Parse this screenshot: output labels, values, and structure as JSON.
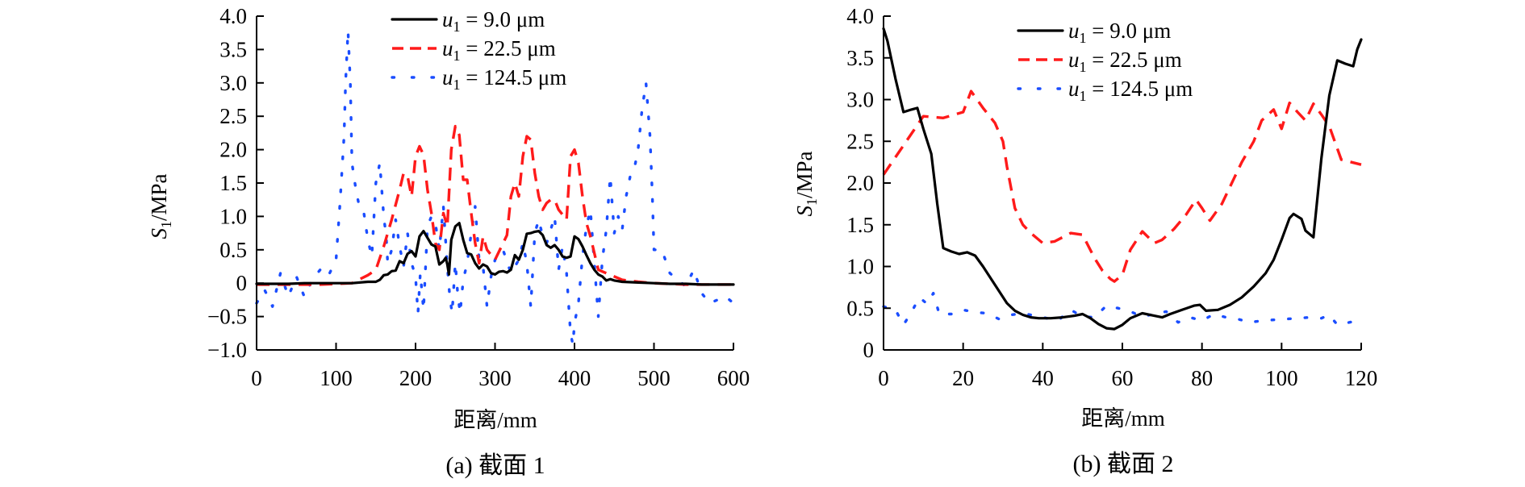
{
  "chart_data": [
    {
      "id": "a",
      "type": "line",
      "caption": "(a) 截面 1",
      "xlabel": "距离/mm",
      "ylabel_main": "S",
      "ylabel_sub": "1",
      "ylabel_unit": "/MPa",
      "xlim": [
        0,
        600
      ],
      "ylim": [
        -1.0,
        4.0
      ],
      "xticks": [
        0,
        100,
        200,
        300,
        400,
        500,
        600
      ],
      "xtick_labels": [
        "0",
        "100",
        "200",
        "300",
        "400",
        "500",
        "600"
      ],
      "yticks": [
        -1.0,
        -0.5,
        0,
        0.5,
        1.0,
        1.5,
        2.0,
        2.5,
        3.0,
        3.5,
        4.0
      ],
      "ytick_labels": [
        "−1.0",
        "−0.5",
        "0",
        "0.5",
        "1.0",
        "1.5",
        "2.0",
        "2.5",
        "3.0",
        "3.5",
        "4.0"
      ],
      "grid": false,
      "legend_position": "top-center",
      "series": [
        {
          "name": "u1 = 9.0 μm",
          "legend_var": "u",
          "legend_sub": "1",
          "legend_rest": " = 9.0 μm",
          "color": "#000000",
          "style": "solid",
          "x": [
            0,
            20,
            40,
            60,
            80,
            100,
            120,
            140,
            150,
            155,
            160,
            165,
            170,
            175,
            180,
            185,
            190,
            195,
            200,
            205,
            210,
            215,
            220,
            225,
            230,
            235,
            238,
            240,
            242,
            245,
            250,
            255,
            260,
            265,
            270,
            275,
            280,
            285,
            290,
            295,
            300,
            305,
            310,
            315,
            320,
            325,
            330,
            335,
            340,
            345,
            350,
            355,
            360,
            365,
            370,
            375,
            380,
            385,
            390,
            395,
            400,
            405,
            410,
            415,
            420,
            425,
            430,
            435,
            440,
            445,
            450,
            460,
            480,
            500,
            520,
            540,
            560,
            580,
            600
          ],
          "y": [
            -0.01,
            -0.01,
            -0.01,
            0.0,
            0.0,
            0.0,
            0.0,
            0.02,
            0.02,
            0.05,
            0.12,
            0.13,
            0.18,
            0.19,
            0.33,
            0.3,
            0.44,
            0.48,
            0.4,
            0.7,
            0.78,
            0.68,
            0.58,
            0.55,
            0.28,
            0.33,
            0.38,
            0.28,
            0.13,
            0.65,
            0.85,
            0.9,
            0.65,
            0.45,
            0.43,
            0.3,
            0.22,
            0.28,
            0.25,
            0.15,
            0.13,
            0.17,
            0.18,
            0.16,
            0.2,
            0.42,
            0.35,
            0.5,
            0.74,
            0.75,
            0.77,
            0.78,
            0.72,
            0.57,
            0.53,
            0.57,
            0.5,
            0.4,
            0.38,
            0.4,
            0.7,
            0.66,
            0.55,
            0.42,
            0.3,
            0.2,
            0.13,
            0.1,
            0.04,
            0.06,
            0.04,
            0.02,
            0.01,
            0.0,
            -0.01,
            -0.01,
            -0.02,
            -0.02,
            -0.02
          ]
        },
        {
          "name": "u1 = 22.5 μm",
          "legend_var": "u",
          "legend_sub": "1",
          "legend_rest": " = 22.5 μm",
          "color": "#ff1a1a",
          "style": "dashed",
          "x": [
            0,
            40,
            80,
            120,
            140,
            150,
            160,
            170,
            180,
            185,
            190,
            195,
            200,
            205,
            210,
            215,
            220,
            225,
            230,
            235,
            240,
            245,
            250,
            255,
            260,
            265,
            270,
            275,
            280,
            285,
            290,
            300,
            315,
            320,
            325,
            330,
            335,
            340,
            345,
            350,
            355,
            360,
            365,
            370,
            375,
            380,
            390,
            395,
            400,
            405,
            410,
            415,
            420,
            425,
            430,
            440,
            450,
            460,
            480,
            500,
            520,
            540,
            560,
            580,
            600
          ],
          "y": [
            -0.02,
            -0.02,
            -0.02,
            0.0,
            0.12,
            0.2,
            0.55,
            0.95,
            1.4,
            1.65,
            1.6,
            1.3,
            1.9,
            2.05,
            1.92,
            1.4,
            1.05,
            0.6,
            0.5,
            1.05,
            0.85,
            2.0,
            2.35,
            2.22,
            1.55,
            1.55,
            1.05,
            0.6,
            0.3,
            0.7,
            0.5,
            0.35,
            0.72,
            1.3,
            1.5,
            1.3,
            1.9,
            2.2,
            2.15,
            1.65,
            1.3,
            1.1,
            1.2,
            1.25,
            1.25,
            1.1,
            0.95,
            1.9,
            2.0,
            1.8,
            1.3,
            0.9,
            0.7,
            0.45,
            0.2,
            0.15,
            0.1,
            0.05,
            0.02,
            0.0,
            -0.01,
            -0.02,
            -0.02,
            -0.02,
            -0.02
          ]
        },
        {
          "name": "u1 = 124.5 μm",
          "legend_var": "u",
          "legend_sub": "1",
          "legend_rest": " = 124.5 μm",
          "color": "#1a4dff",
          "style": "dotted",
          "x": [
            0,
            10,
            20,
            30,
            40,
            50,
            60,
            70,
            80,
            90,
            100,
            105,
            110,
            112,
            115,
            118,
            120,
            125,
            130,
            135,
            140,
            145,
            150,
            155,
            160,
            163,
            165,
            170,
            175,
            180,
            185,
            190,
            195,
            200,
            203,
            206,
            210,
            215,
            220,
            225,
            230,
            235,
            240,
            243,
            246,
            250,
            253,
            256,
            260,
            265,
            270,
            275,
            280,
            285,
            290,
            295,
            300,
            310,
            320,
            330,
            335,
            340,
            345,
            350,
            355,
            360,
            365,
            370,
            375,
            380,
            385,
            390,
            395,
            398,
            400,
            405,
            410,
            415,
            420,
            425,
            430,
            435,
            440,
            445,
            450,
            455,
            460,
            465,
            470,
            475,
            480,
            485,
            490,
            495,
            498,
            500,
            505,
            510,
            520,
            530,
            540,
            550,
            560,
            570,
            580,
            590,
            600
          ],
          "y": [
            -0.3,
            -0.1,
            -0.35,
            0.15,
            -0.2,
            0.1,
            -0.2,
            0.05,
            0.2,
            0.1,
            0.35,
            1.2,
            2.2,
            3.0,
            3.78,
            3.0,
            1.8,
            1.4,
            1.1,
            1.05,
            0.65,
            0.4,
            1.5,
            1.8,
            1.0,
            0.7,
            0.3,
            0.5,
            0.95,
            0.55,
            0.25,
            0.75,
            0.3,
            0.1,
            -0.45,
            0.15,
            -0.4,
            0.85,
            1.0,
            0.9,
            0.5,
            1.15,
            0.25,
            -0.2,
            -0.45,
            0.3,
            -0.15,
            -0.45,
            0.05,
            0.3,
            0.75,
            1.15,
            0.35,
            0.25,
            -0.35,
            0.1,
            0.35,
            0.5,
            0.15,
            0.35,
            0.6,
            0.3,
            -0.35,
            0.75,
            0.95,
            0.7,
            0.6,
            0.8,
            1.0,
            0.2,
            0.55,
            0.15,
            -0.75,
            -0.92,
            -0.6,
            -0.3,
            0.4,
            0.85,
            1.1,
            0.3,
            -0.5,
            0.35,
            0.8,
            1.6,
            0.75,
            1.0,
            0.8,
            1.3,
            1.6,
            1.7,
            2.0,
            2.6,
            3.0,
            2.2,
            1.3,
            0.5,
            0.5,
            0.5,
            0.15,
            0.05,
            -0.05,
            0.2,
            -0.15,
            -0.3,
            -0.25,
            -0.2,
            -0.3
          ]
        }
      ]
    },
    {
      "id": "b",
      "type": "line",
      "caption": "(b) 截面 2",
      "xlabel": "距离/mm",
      "ylabel_main": "S",
      "ylabel_sub": "1",
      "ylabel_unit": "/MPa",
      "xlim": [
        0,
        120
      ],
      "ylim": [
        0,
        4.0
      ],
      "xticks": [
        0,
        20,
        40,
        60,
        80,
        100,
        120
      ],
      "xtick_labels": [
        "0",
        "20",
        "40",
        "60",
        "80",
        "100",
        "120"
      ],
      "yticks": [
        0,
        0.5,
        1.0,
        1.5,
        2.0,
        2.5,
        3.0,
        3.5,
        4.0
      ],
      "ytick_labels": [
        "0",
        "0.5",
        "1.0",
        "1.5",
        "2.0",
        "2.5",
        "3.0",
        "3.5",
        "4.0"
      ],
      "grid": false,
      "legend_position": "top-center",
      "series": [
        {
          "name": "u1 = 9.0 μm",
          "legend_var": "u",
          "legend_sub": "1",
          "legend_rest": " = 9.0 μm",
          "color": "#000000",
          "style": "solid",
          "x": [
            0,
            1,
            3,
            5,
            7,
            8.5,
            10,
            12,
            13.5,
            15,
            17,
            19,
            21,
            23,
            25,
            28,
            31,
            33,
            35,
            37,
            39,
            42,
            45,
            48,
            50,
            52,
            54,
            56,
            58,
            60,
            62,
            65,
            68,
            70,
            72,
            75,
            78,
            79.5,
            81,
            84,
            87,
            90,
            93,
            96,
            98,
            100,
            102,
            103,
            105,
            106,
            108,
            110,
            112,
            114,
            116,
            118,
            119,
            120
          ],
          "y": [
            3.85,
            3.7,
            3.25,
            2.85,
            2.88,
            2.9,
            2.65,
            2.35,
            1.75,
            1.22,
            1.18,
            1.15,
            1.17,
            1.13,
            1.0,
            0.78,
            0.56,
            0.47,
            0.42,
            0.39,
            0.38,
            0.38,
            0.39,
            0.41,
            0.43,
            0.38,
            0.31,
            0.26,
            0.25,
            0.3,
            0.38,
            0.44,
            0.41,
            0.39,
            0.43,
            0.48,
            0.53,
            0.54,
            0.47,
            0.48,
            0.54,
            0.63,
            0.76,
            0.92,
            1.08,
            1.32,
            1.58,
            1.63,
            1.57,
            1.43,
            1.35,
            2.3,
            3.05,
            3.47,
            3.43,
            3.4,
            3.6,
            3.72
          ]
        },
        {
          "name": "u1 = 22.5 μm",
          "legend_var": "u",
          "legend_sub": "1",
          "legend_rest": " = 22.5 μm",
          "color": "#ff1a1a",
          "style": "dashed",
          "x": [
            0,
            5,
            10,
            15,
            20,
            22,
            25,
            28,
            30,
            31,
            33,
            35,
            37,
            40,
            43,
            47,
            50,
            53,
            55,
            57,
            58,
            60,
            62,
            65,
            68,
            70,
            73,
            76,
            78.5,
            80,
            82,
            85,
            88,
            90,
            93,
            95,
            98,
            100,
            102,
            104,
            106,
            108,
            110,
            112,
            115,
            120
          ],
          "y": [
            2.1,
            2.45,
            2.8,
            2.78,
            2.85,
            3.1,
            2.9,
            2.72,
            2.5,
            2.2,
            1.7,
            1.5,
            1.4,
            1.28,
            1.3,
            1.4,
            1.38,
            1.1,
            0.95,
            0.85,
            0.82,
            0.9,
            1.2,
            1.42,
            1.28,
            1.32,
            1.45,
            1.62,
            1.8,
            1.7,
            1.55,
            1.75,
            2.05,
            2.25,
            2.5,
            2.75,
            2.88,
            2.65,
            2.96,
            2.85,
            2.75,
            2.95,
            2.82,
            2.68,
            2.28,
            2.22
          ]
        },
        {
          "name": "u1 = 124.5 μm",
          "legend_var": "u",
          "legend_sub": "1",
          "legend_rest": " = 124.5 μm",
          "color": "#1a4dff",
          "style": "dotted",
          "x": [
            0,
            3,
            5,
            7,
            9,
            11,
            12.5,
            14,
            17,
            20,
            23,
            26,
            29,
            32,
            35,
            38,
            41,
            44,
            47,
            50,
            53,
            56,
            59,
            62,
            65,
            68,
            71,
            74,
            77,
            80,
            83,
            86,
            89,
            92,
            95,
            98,
            101,
            104,
            107,
            110,
            112,
            114,
            116,
            118,
            120
          ],
          "y": [
            0.52,
            0.48,
            0.3,
            0.45,
            0.63,
            0.55,
            0.68,
            0.43,
            0.43,
            0.48,
            0.45,
            0.44,
            0.37,
            0.42,
            0.44,
            0.41,
            0.38,
            0.36,
            0.48,
            0.4,
            0.39,
            0.53,
            0.5,
            0.46,
            0.4,
            0.43,
            0.46,
            0.33,
            0.39,
            0.35,
            0.43,
            0.39,
            0.37,
            0.33,
            0.35,
            0.36,
            0.37,
            0.38,
            0.39,
            0.38,
            0.42,
            0.3,
            0.32,
            0.34,
            0.36
          ]
        }
      ]
    }
  ]
}
